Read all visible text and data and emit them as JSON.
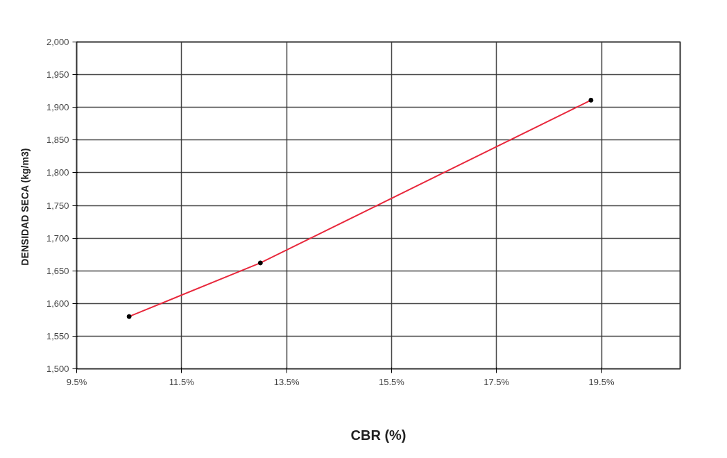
{
  "chart_data": {
    "type": "line",
    "xlabel": "CBR (%)",
    "ylabel": "DENSIDAD SECA  (kg/m3)",
    "x": [
      10.5,
      13.0,
      19.3
    ],
    "series": [
      {
        "color": "#e8283c",
        "values": [
          1580,
          1662,
          1911
        ]
      }
    ],
    "marker": "circle",
    "line_style": "solid",
    "grid": true,
    "xlim": [
      9.5,
      21.0
    ],
    "xticks": [
      {
        "value": 9.5,
        "label": "9.5%"
      },
      {
        "value": 11.5,
        "label": "11.5%"
      },
      {
        "value": 13.5,
        "label": "13.5%"
      },
      {
        "value": 15.5,
        "label": "15.5%"
      },
      {
        "value": 17.5,
        "label": "17.5%"
      },
      {
        "value": 19.5,
        "label": "19.5%"
      }
    ],
    "ylim": [
      1500,
      2000
    ],
    "yticks": [
      {
        "value": 1500,
        "label": "1,500"
      },
      {
        "value": 1550,
        "label": "1,550"
      },
      {
        "value": 1600,
        "label": "1,600"
      },
      {
        "value": 1650,
        "label": "1,650"
      },
      {
        "value": 1700,
        "label": "1,700"
      },
      {
        "value": 1750,
        "label": "1,750"
      },
      {
        "value": 1800,
        "label": "1,800"
      },
      {
        "value": 1850,
        "label": "1,850"
      },
      {
        "value": 1900,
        "label": "1,900"
      },
      {
        "value": 1950,
        "label": "1,950"
      },
      {
        "value": 2000,
        "label": "2,000"
      }
    ]
  }
}
